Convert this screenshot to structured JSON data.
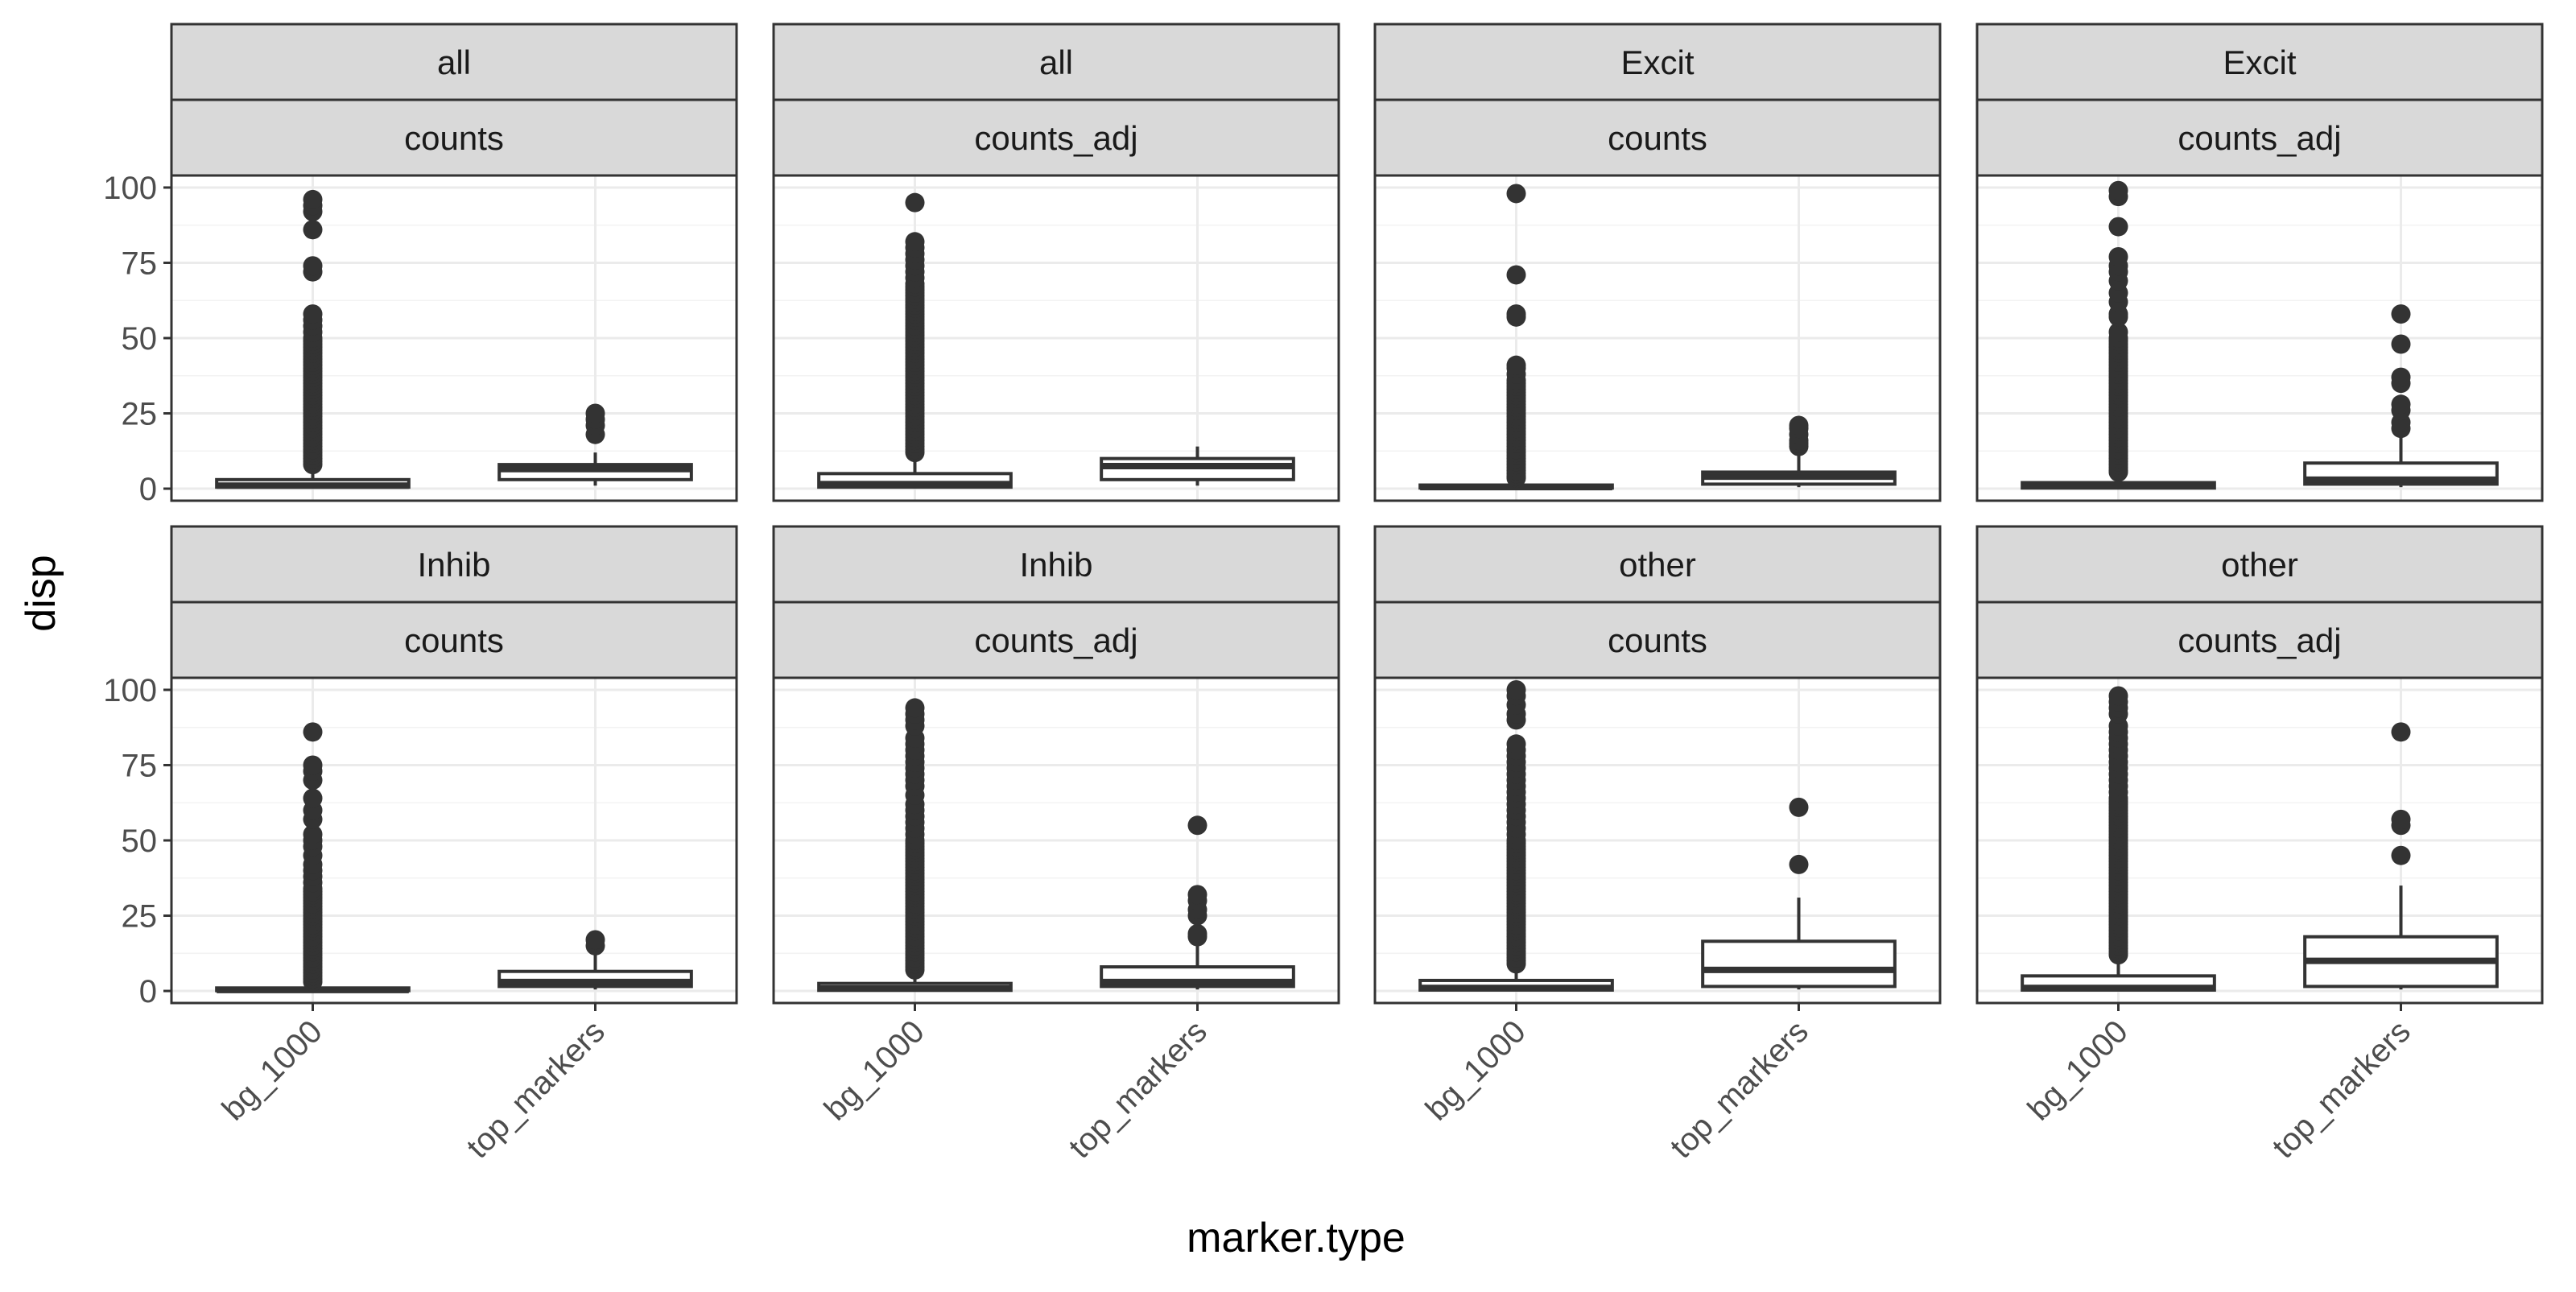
{
  "chart_data": {
    "type": "boxplot",
    "xlabel": "marker.type",
    "ylabel": "disp",
    "ylim": [
      -4,
      104
    ],
    "y_ticks": [
      0,
      25,
      50,
      75,
      100
    ],
    "y_tick_labels": [
      "0",
      "25",
      "50",
      "75",
      "100"
    ],
    "grid": true,
    "categories": [
      "bg_1000",
      "top_markers"
    ],
    "panels": [
      {
        "strip_top": "all",
        "strip_bottom": "counts",
        "boxes": [
          {
            "category": "bg_1000",
            "q1": 0.5,
            "median": 1.0,
            "q3": 3.0,
            "whisker_low": 0,
            "whisker_high": 7,
            "outliers": [
              8,
              9,
              10,
              11,
              12,
              13,
              14,
              15,
              16,
              17,
              18,
              19,
              20,
              21,
              22,
              23,
              24,
              25,
              26,
              27,
              28,
              29,
              30,
              31,
              32,
              33,
              34,
              35,
              36,
              37,
              38,
              39,
              40,
              41,
              42,
              43,
              44,
              45,
              46,
              47,
              48,
              49,
              50,
              52,
              54,
              56,
              58,
              72,
              74,
              86,
              92,
              94,
              96
            ]
          },
          {
            "category": "top_markers",
            "q1": 3.0,
            "median": 6.5,
            "q3": 8.0,
            "whisker_low": 1,
            "whisker_high": 12,
            "outliers": [
              18,
              21,
              23,
              25
            ]
          }
        ]
      },
      {
        "strip_top": "all",
        "strip_bottom": "counts_adj",
        "boxes": [
          {
            "category": "bg_1000",
            "q1": 0.5,
            "median": 1.5,
            "q3": 5.0,
            "whisker_low": 0,
            "whisker_high": 11,
            "outliers": [
              12,
              13,
              14,
              15,
              16,
              17,
              18,
              19,
              20,
              21,
              22,
              23,
              24,
              25,
              26,
              27,
              28,
              29,
              30,
              31,
              32,
              33,
              34,
              35,
              36,
              37,
              38,
              39,
              40,
              41,
              42,
              43,
              44,
              45,
              46,
              47,
              48,
              49,
              50,
              51,
              52,
              53,
              54,
              55,
              56,
              57,
              58,
              59,
              60,
              61,
              62,
              63,
              64,
              65,
              66,
              67,
              68,
              70,
              72,
              74,
              76,
              78,
              80,
              82,
              95
            ]
          },
          {
            "category": "top_markers",
            "q1": 3.0,
            "median": 7.5,
            "q3": 10.0,
            "whisker_low": 1,
            "whisker_high": 14,
            "outliers": []
          }
        ]
      },
      {
        "strip_top": "Excit",
        "strip_bottom": "counts",
        "boxes": [
          {
            "category": "bg_1000",
            "q1": 0.2,
            "median": 0.5,
            "q3": 1.2,
            "whisker_low": 0,
            "whisker_high": 3,
            "outliers": [
              3.5,
              4,
              5,
              6,
              7,
              8,
              9,
              10,
              11,
              12,
              13,
              14,
              15,
              16,
              17,
              18,
              19,
              20,
              21,
              22,
              23,
              24,
              25,
              26,
              27,
              28,
              29,
              30,
              31,
              32,
              33,
              34,
              35,
              36,
              38,
              40,
              41,
              57,
              58,
              71,
              98
            ]
          },
          {
            "category": "top_markers",
            "q1": 1.5,
            "median": 4.0,
            "q3": 5.5,
            "whisker_low": 0.5,
            "whisker_high": 11,
            "outliers": [
              14,
              15,
              16,
              18,
              20,
              21
            ]
          }
        ]
      },
      {
        "strip_top": "Excit",
        "strip_bottom": "counts_adj",
        "boxes": [
          {
            "category": "bg_1000",
            "q1": 0.2,
            "median": 0.8,
            "q3": 2.0,
            "whisker_low": 0,
            "whisker_high": 5,
            "outliers": [
              5.5,
              6,
              7,
              8,
              9,
              10,
              11,
              12,
              13,
              14,
              15,
              16,
              17,
              18,
              19,
              20,
              21,
              22,
              23,
              24,
              25,
              26,
              27,
              28,
              29,
              30,
              31,
              32,
              33,
              34,
              35,
              36,
              37,
              38,
              39,
              40,
              41,
              42,
              43,
              44,
              45,
              46,
              47,
              48,
              49,
              50,
              52,
              57,
              58,
              62,
              65,
              69,
              72,
              74,
              77,
              87,
              97,
              99
            ]
          },
          {
            "category": "top_markers",
            "q1": 1.5,
            "median": 3.0,
            "q3": 8.5,
            "whisker_low": 0.5,
            "whisker_high": 17,
            "outliers": [
              20,
              22,
              26,
              28,
              35,
              37,
              48,
              58
            ]
          }
        ]
      },
      {
        "strip_top": "Inhib",
        "strip_bottom": "counts",
        "boxes": [
          {
            "category": "bg_1000",
            "q1": 0.1,
            "median": 0.3,
            "q3": 1.0,
            "whisker_low": 0,
            "whisker_high": 2.5,
            "outliers": [
              3,
              4,
              5,
              6,
              7,
              8,
              9,
              10,
              11,
              12,
              13,
              14,
              15,
              16,
              17,
              18,
              19,
              20,
              21,
              22,
              23,
              24,
              25,
              26,
              27,
              28,
              29,
              30,
              31,
              32,
              33,
              34,
              36,
              38,
              40,
              42,
              45,
              48,
              50,
              52,
              57,
              60,
              64,
              70,
              73,
              75,
              86
            ]
          },
          {
            "category": "top_markers",
            "q1": 1.5,
            "median": 3.0,
            "q3": 6.5,
            "whisker_low": 0.5,
            "whisker_high": 12,
            "outliers": [
              15,
              17
            ]
          }
        ]
      },
      {
        "strip_top": "Inhib",
        "strip_bottom": "counts_adj",
        "boxes": [
          {
            "category": "bg_1000",
            "q1": 0.2,
            "median": 0.8,
            "q3": 2.5,
            "whisker_low": 0,
            "whisker_high": 6,
            "outliers": [
              7,
              8,
              9,
              10,
              11,
              12,
              13,
              14,
              15,
              16,
              17,
              18,
              19,
              20,
              21,
              22,
              23,
              24,
              25,
              26,
              27,
              28,
              29,
              30,
              31,
              32,
              33,
              34,
              35,
              36,
              37,
              38,
              39,
              40,
              41,
              42,
              43,
              44,
              45,
              46,
              47,
              48,
              49,
              50,
              52,
              54,
              56,
              58,
              60,
              62,
              65,
              68,
              70,
              72,
              74,
              76,
              78,
              80,
              82,
              84,
              88,
              90,
              92,
              94
            ]
          },
          {
            "category": "top_markers",
            "q1": 1.5,
            "median": 3.0,
            "q3": 8.0,
            "whisker_low": 0.5,
            "whisker_high": 16,
            "outliers": [
              18,
              19,
              25,
              27,
              30,
              32,
              55
            ]
          }
        ]
      },
      {
        "strip_top": "other",
        "strip_bottom": "counts",
        "boxes": [
          {
            "category": "bg_1000",
            "q1": 0.3,
            "median": 1.0,
            "q3": 3.5,
            "whisker_low": 0,
            "whisker_high": 8,
            "outliers": [
              9,
              10,
              11,
              12,
              13,
              14,
              15,
              16,
              17,
              18,
              19,
              20,
              21,
              22,
              23,
              24,
              25,
              26,
              27,
              28,
              29,
              30,
              31,
              32,
              33,
              34,
              35,
              36,
              37,
              38,
              39,
              40,
              41,
              42,
              43,
              44,
              45,
              46,
              47,
              48,
              49,
              50,
              52,
              54,
              56,
              58,
              60,
              62,
              64,
              66,
              68,
              70,
              72,
              74,
              76,
              78,
              80,
              82,
              90,
              92,
              95,
              98,
              100
            ]
          },
          {
            "category": "top_markers",
            "q1": 1.5,
            "median": 7.0,
            "q3": 16.5,
            "whisker_low": 0.5,
            "whisker_high": 31,
            "outliers": [
              42,
              61
            ]
          }
        ]
      },
      {
        "strip_top": "other",
        "strip_bottom": "counts_adj",
        "boxes": [
          {
            "category": "bg_1000",
            "q1": 0.3,
            "median": 1.0,
            "q3": 5.0,
            "whisker_low": 0,
            "whisker_high": 11,
            "outliers": [
              12,
              13,
              14,
              15,
              16,
              17,
              18,
              19,
              20,
              21,
              22,
              23,
              24,
              25,
              26,
              27,
              28,
              29,
              30,
              31,
              32,
              33,
              34,
              35,
              36,
              37,
              38,
              39,
              40,
              41,
              42,
              43,
              44,
              45,
              46,
              47,
              48,
              49,
              50,
              51,
              52,
              53,
              54,
              55,
              56,
              57,
              58,
              59,
              60,
              61,
              62,
              63,
              64,
              66,
              68,
              70,
              72,
              74,
              76,
              78,
              80,
              82,
              84,
              86,
              88,
              92,
              94,
              96,
              98
            ]
          },
          {
            "category": "top_markers",
            "q1": 1.5,
            "median": 10.0,
            "q3": 18.0,
            "whisker_low": 0.5,
            "whisker_high": 35,
            "outliers": [
              45,
              55,
              57,
              86
            ]
          }
        ]
      }
    ]
  }
}
